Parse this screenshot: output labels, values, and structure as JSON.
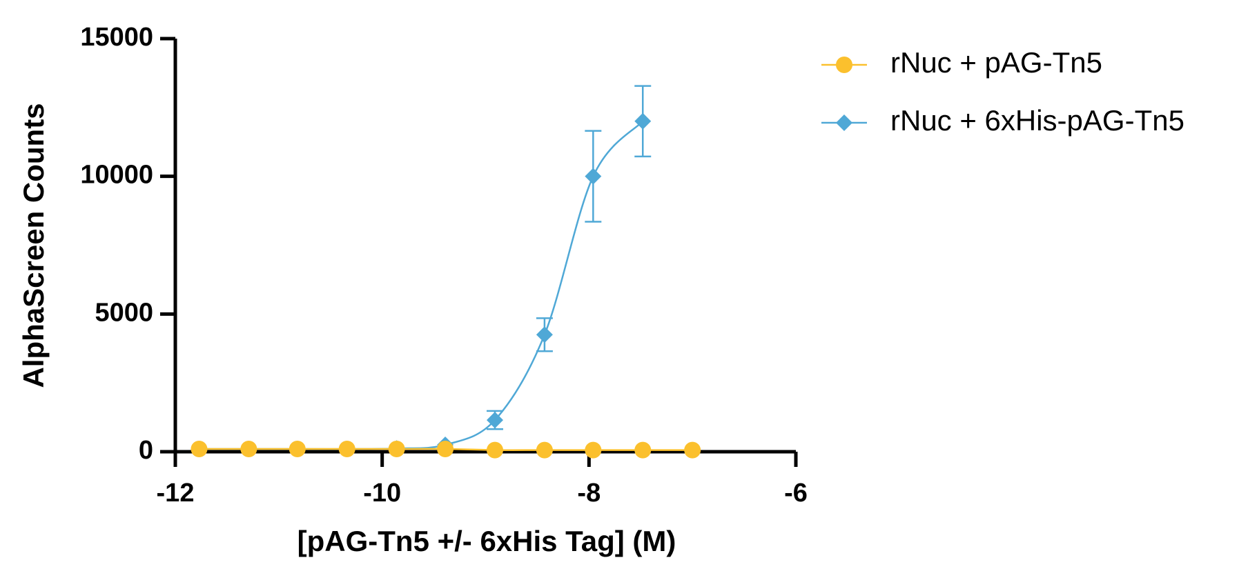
{
  "chart_data": {
    "type": "line",
    "x_label": "[pAG-Tn5 +/- 6xHis Tag] (M)",
    "y_label": "AlphaScreen Counts",
    "x": [
      -11.77,
      -11.29,
      -10.82,
      -10.34,
      -9.86,
      -9.39,
      -8.91,
      -8.43,
      -7.96,
      -7.48,
      -7.0
    ],
    "series": [
      {
        "name": "rNuc + pAG-Tn5",
        "color": "#fbc02d",
        "marker": "circle",
        "values": [
          100,
          100,
          100,
          100,
          100,
          100,
          60,
          60,
          60,
          60,
          60
        ]
      },
      {
        "name": "rNuc + 6xHis-pAG-Tn5",
        "color": "#4fa8d6",
        "marker": "diamond",
        "values": [
          100,
          100,
          100,
          100,
          120,
          250,
          1150,
          4250,
          10000,
          12000,
          null
        ],
        "errors": [
          null,
          null,
          null,
          null,
          null,
          null,
          330,
          600,
          1650,
          1280,
          null
        ]
      }
    ],
    "xlim": [
      -12,
      -6
    ],
    "xticks": [
      -12,
      -10,
      -8,
      -6
    ],
    "ylim": [
      0,
      15000
    ],
    "yticks": [
      0,
      5000,
      10000,
      15000
    ],
    "legend": "right"
  }
}
